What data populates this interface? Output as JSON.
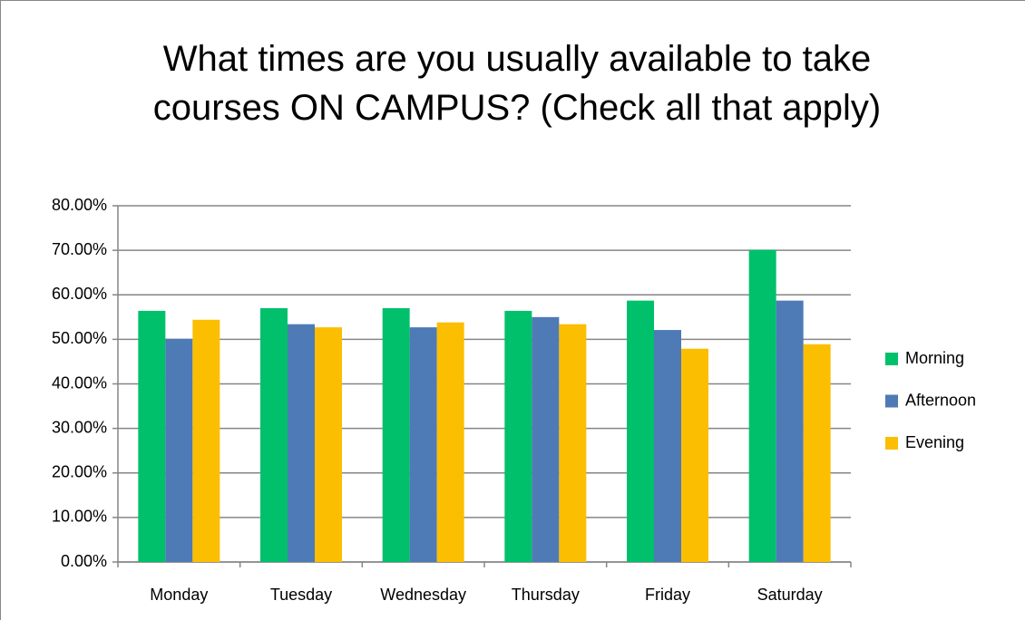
{
  "chart_data": {
    "type": "bar",
    "title": "What times are you usually available to take courses ON CAMPUS? (Check all that apply)",
    "categories": [
      "Monday",
      "Tuesday",
      "Wednesday",
      "Thursday",
      "Friday",
      "Saturday"
    ],
    "series": [
      {
        "name": "Morning",
        "color": "#00c06b",
        "values": [
          56.4,
          57.0,
          57.0,
          56.4,
          58.7,
          70.1
        ]
      },
      {
        "name": "Afternoon",
        "color": "#4e7ab5",
        "values": [
          50.1,
          53.4,
          52.7,
          55.0,
          52.1,
          58.7
        ]
      },
      {
        "name": "Evening",
        "color": "#fbbe00",
        "values": [
          54.4,
          52.7,
          53.8,
          53.4,
          47.9,
          48.9
        ]
      }
    ],
    "ylim": [
      0,
      80
    ],
    "yticks": [
      {
        "value": 0,
        "label": "0.00%"
      },
      {
        "value": 10,
        "label": "10.00%"
      },
      {
        "value": 20,
        "label": "20.00%"
      },
      {
        "value": 30,
        "label": "30.00%"
      },
      {
        "value": 40,
        "label": "40.00%"
      },
      {
        "value": 50,
        "label": "50.00%"
      },
      {
        "value": 60,
        "label": "60.00%"
      },
      {
        "value": 70,
        "label": "70.00%"
      },
      {
        "value": 80,
        "label": "80.00%"
      }
    ],
    "grid": true,
    "legend": "right"
  }
}
